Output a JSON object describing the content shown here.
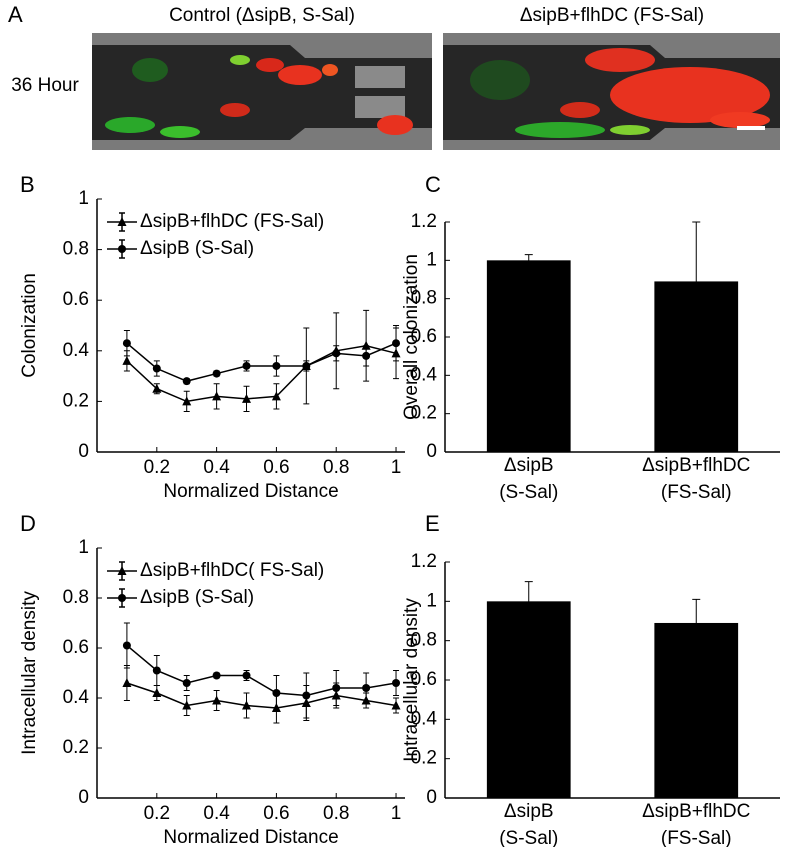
{
  "panel_a": {
    "label": "A",
    "titles": [
      "Control (ΔsipB, S-Sal)",
      "ΔsipB+flhDC (FS-Sal)"
    ],
    "row_label": "36 Hour"
  },
  "chart_data": [
    {
      "type": "line",
      "panel_label": "B",
      "x_label": "Normalized Distance",
      "y_label": "Colonization",
      "x": [
        0.1,
        0.2,
        0.3,
        0.4,
        0.5,
        0.6,
        0.7,
        0.8,
        0.9,
        1
      ],
      "series": [
        {
          "name": "ΔsipB+flhDC (FS-Sal)",
          "color": "#000000",
          "marker": "triangle",
          "values": [
            0.36,
            0.25,
            0.2,
            0.22,
            0.21,
            0.22,
            0.34,
            0.4,
            0.42,
            0.39
          ],
          "errors": [
            0.04,
            0.02,
            0.04,
            0.05,
            0.05,
            0.05,
            0.15,
            0.15,
            0.14,
            0.1
          ]
        },
        {
          "name": "ΔsipB (S-Sal)",
          "color": "#000000",
          "marker": "circle",
          "values": [
            0.43,
            0.33,
            0.28,
            0.31,
            0.34,
            0.34,
            0.34,
            0.39,
            0.38,
            0.43
          ],
          "errors": [
            0.05,
            0.03,
            0.01,
            0.01,
            0.02,
            0.04,
            0.02,
            0.03,
            0.04,
            0.07
          ]
        }
      ],
      "xlim": [
        0,
        1.03
      ],
      "xticks": [
        0.2,
        0.4,
        0.6,
        0.8,
        1
      ],
      "ylim": [
        0,
        1
      ],
      "yticks": [
        0,
        0.2,
        0.4,
        0.6,
        0.8,
        1
      ],
      "legend": "upper left"
    },
    {
      "type": "bar",
      "panel_label": "C",
      "y_label": "Overall colonization",
      "categories": [
        [
          "ΔsipB",
          "(S-Sal)"
        ],
        [
          "ΔsipB+flhDC",
          "(FS-Sal)"
        ]
      ],
      "values": [
        1.0,
        0.89
      ],
      "errors": [
        0.03,
        0.31
      ],
      "color": "#000000",
      "ylim": [
        0,
        1.2
      ],
      "yticks": [
        0,
        0.2,
        0.4,
        0.6,
        0.8,
        1,
        1.2
      ]
    },
    {
      "type": "line",
      "panel_label": "D",
      "x_label": "Normalized Distance",
      "y_label": "Intracellular density",
      "x": [
        0.1,
        0.2,
        0.3,
        0.4,
        0.5,
        0.6,
        0.7,
        0.8,
        0.9,
        1
      ],
      "series": [
        {
          "name": "ΔsipB+flhDC( FS-Sal)",
          "color": "#000000",
          "marker": "triangle",
          "values": [
            0.46,
            0.42,
            0.37,
            0.39,
            0.37,
            0.36,
            0.38,
            0.41,
            0.39,
            0.37
          ],
          "errors": [
            0.07,
            0.03,
            0.04,
            0.04,
            0.05,
            0.06,
            0.07,
            0.05,
            0.03,
            0.03
          ]
        },
        {
          "name": "ΔsipB (S-Sal)",
          "color": "#000000",
          "marker": "circle",
          "values": [
            0.61,
            0.51,
            0.46,
            0.49,
            0.49,
            0.42,
            0.41,
            0.44,
            0.44,
            0.46
          ],
          "errors": [
            0.09,
            0.06,
            0.03,
            0.01,
            0.02,
            0.07,
            0.09,
            0.07,
            0.06,
            0.05
          ]
        }
      ],
      "xlim": [
        0,
        1.03
      ],
      "xticks": [
        0.2,
        0.4,
        0.6,
        0.8,
        1
      ],
      "ylim": [
        0,
        1
      ],
      "yticks": [
        0,
        0.2,
        0.4,
        0.6,
        0.8,
        1
      ],
      "legend": "upper left"
    },
    {
      "type": "bar",
      "panel_label": "E",
      "y_label": "Intracellular density",
      "categories": [
        [
          "ΔsipB",
          "(S-Sal)"
        ],
        [
          "ΔsipB+flhDC",
          "(FS-Sal)"
        ]
      ],
      "values": [
        1.0,
        0.89
      ],
      "errors": [
        0.1,
        0.12
      ],
      "color": "#000000",
      "ylim": [
        0,
        1.2
      ],
      "yticks": [
        0,
        0.2,
        0.4,
        0.6,
        0.8,
        1,
        1.2
      ]
    }
  ]
}
